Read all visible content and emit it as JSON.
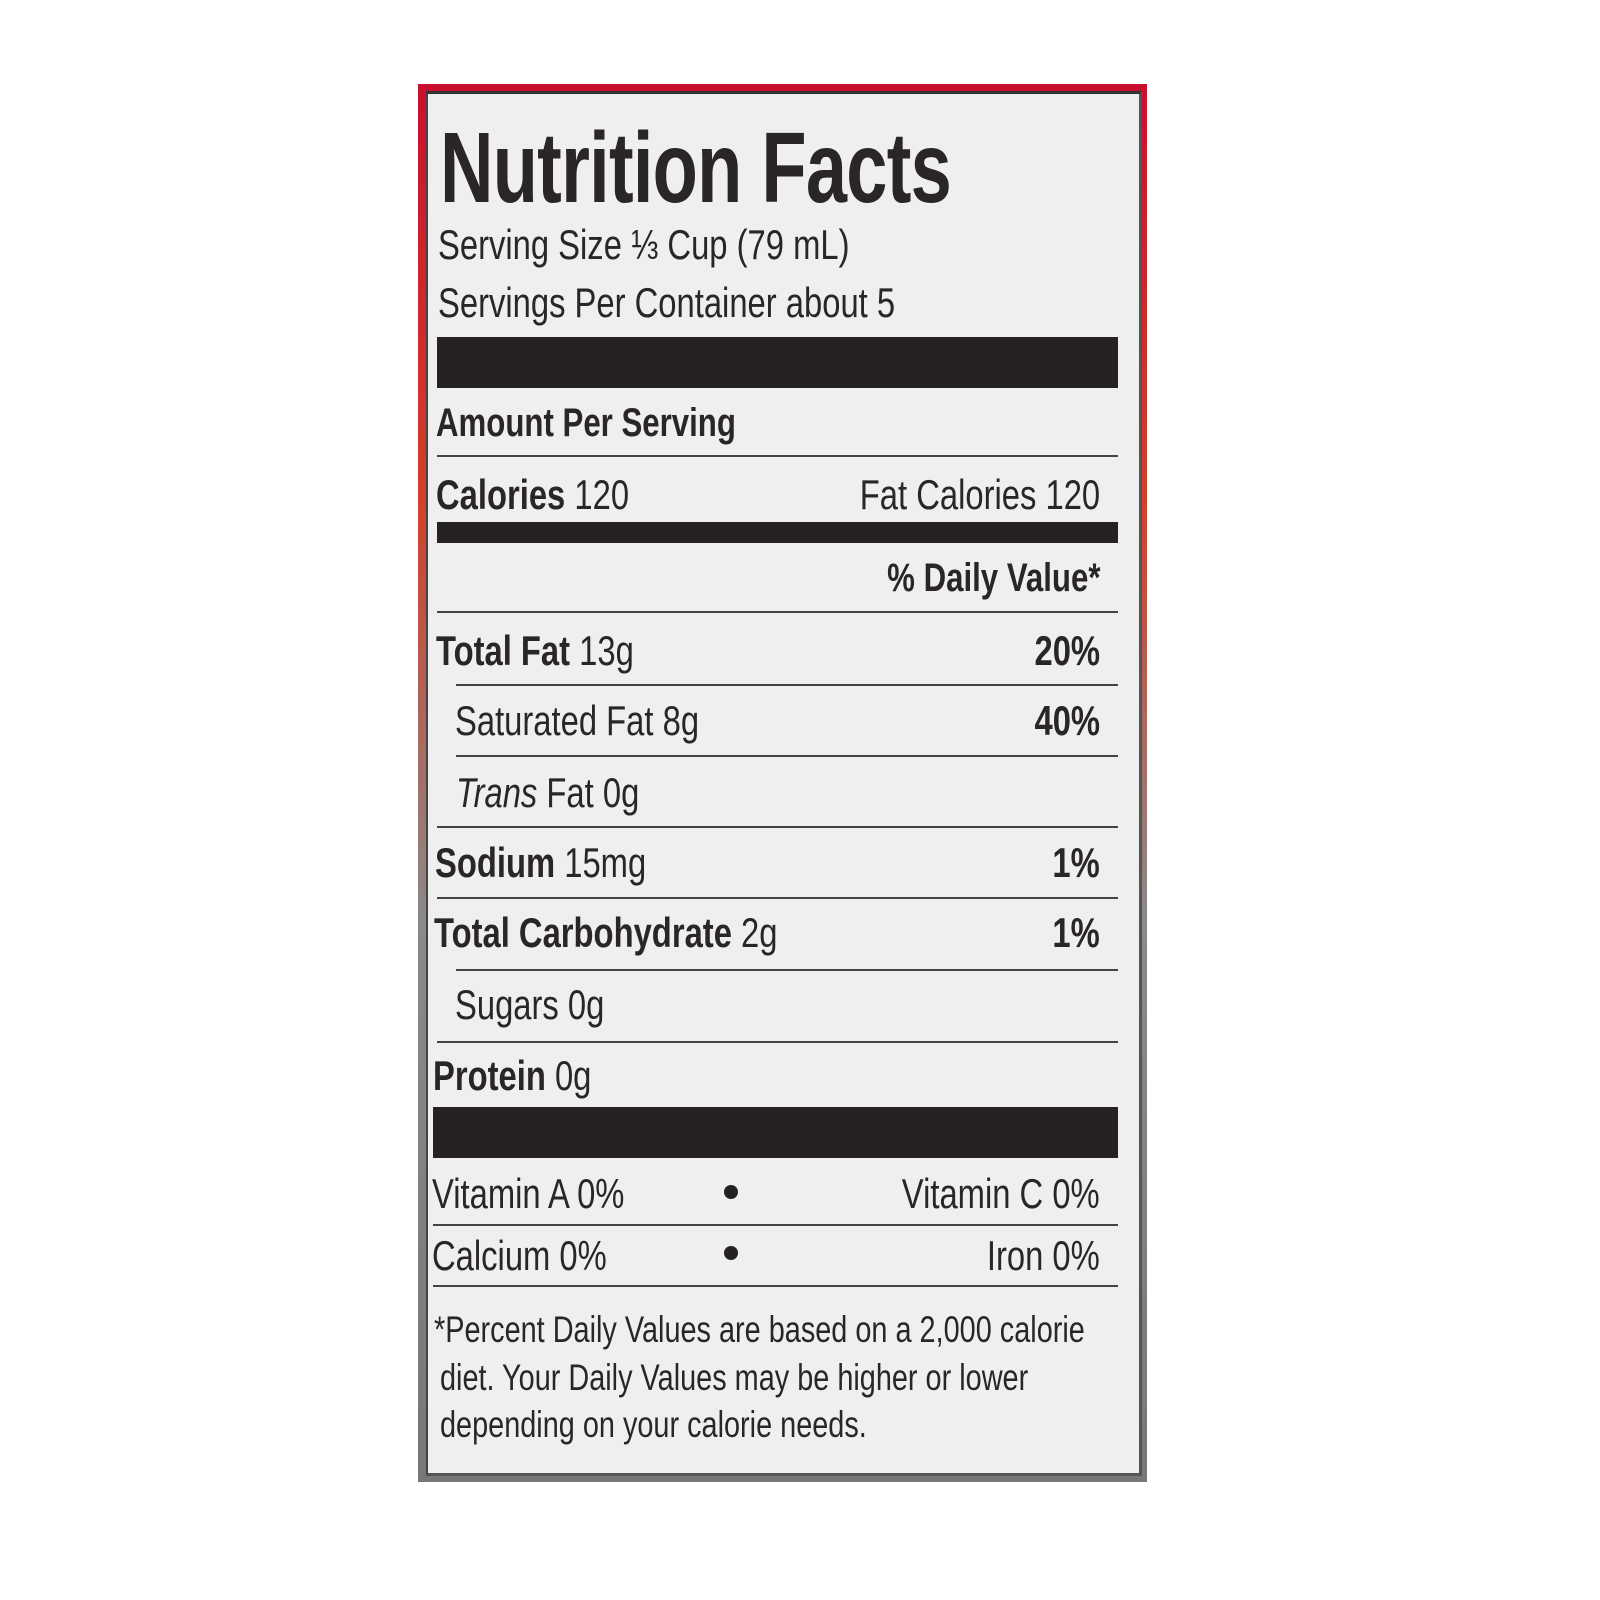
{
  "label": {
    "title": "Nutrition Facts",
    "serving_size": "Serving Size ⅓ Cup (79 mL)",
    "servings_per_container": "Servings Per Container about 5",
    "amount_per_serving": "Amount Per Serving",
    "calories_label": "Calories",
    "calories_value": "120",
    "fat_calories": "Fat Calories 120",
    "daily_value_header": "% Daily Value*",
    "nutrients": [
      {
        "name": "Total Fat",
        "amount": "13g",
        "dv": "20%"
      },
      {
        "name": "Saturated Fat",
        "amount": "8g",
        "dv": "40%"
      },
      {
        "name": "Trans",
        "name_rest": "Fat",
        "amount": "0g"
      },
      {
        "name": "Sodium",
        "amount": "15mg",
        "dv": "1%"
      },
      {
        "name": "Total Carbohydrate",
        "amount": "2g",
        "dv": "1%"
      },
      {
        "name": "Sugars",
        "amount": "0g"
      },
      {
        "name": "Protein",
        "amount": "0g"
      }
    ],
    "vitamins": [
      {
        "left": "Vitamin A 0%",
        "right": "Vitamin C 0%"
      },
      {
        "left": "Calcium 0%",
        "right": "Iron 0%"
      }
    ],
    "footnote": [
      "*Percent Daily Values are based on a 2,000 calorie",
      "diet. Your Daily Values may be higher or lower",
      "depending on your calorie needs."
    ]
  }
}
